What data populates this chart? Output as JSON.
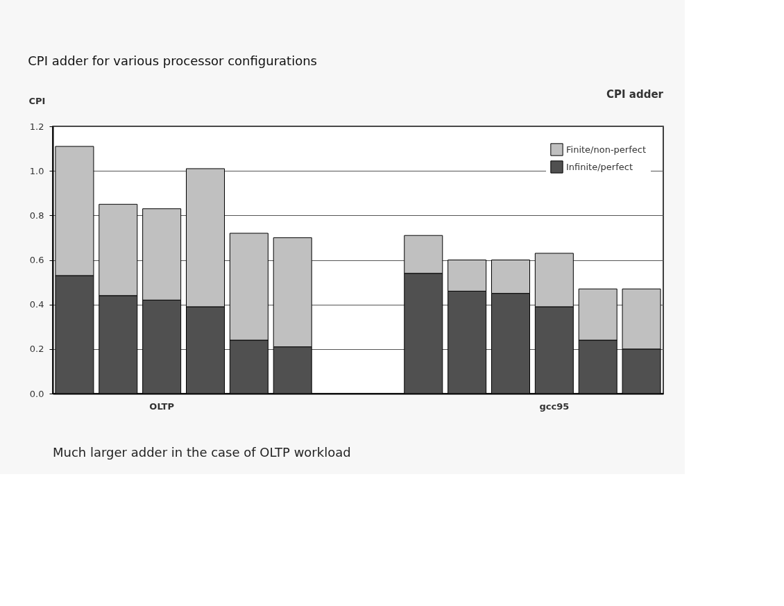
{
  "chart_data": {
    "type": "bar",
    "title": "CPI adder for various processor configurations",
    "subtitle": "CPI adder",
    "ylabel": "CPI",
    "categories": [
      null,
      null,
      "OLTP",
      null,
      null,
      null,
      null,
      null,
      null,
      null,
      null,
      "gcc95",
      null,
      null
    ],
    "stacked": true,
    "series": [
      {
        "name": "Infinite/perfect",
        "color": "#505050",
        "values": [
          0.53,
          0.44,
          0.42,
          0.39,
          0.24,
          0.21,
          null,
          null,
          0.54,
          0.46,
          0.45,
          0.39,
          0.24,
          0.2
        ]
      },
      {
        "name": "Finite/non-perfect",
        "color": "#c0c0c0",
        "values": [
          0.58,
          0.41,
          0.41,
          0.62,
          0.48,
          0.49,
          null,
          null,
          0.17,
          0.14,
          0.15,
          0.24,
          0.23,
          0.27
        ]
      }
    ],
    "ylim": [
      0,
      1.2
    ],
    "yticks": [
      {
        "value": 0,
        "label": "0.0"
      },
      0.2,
      0.4,
      0.6,
      0.8,
      {
        "value": 1,
        "label": "1.0"
      },
      1.2
    ],
    "grid": "y",
    "legend": "top right",
    "annotations": [
      "Much larger adder in the case of OLTP workload"
    ]
  }
}
